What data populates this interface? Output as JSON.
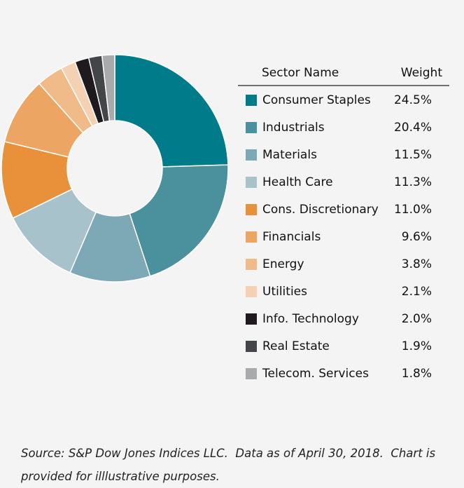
{
  "chart_data": {
    "type": "donut",
    "legend_header": [
      "Sector Name",
      "Weight"
    ],
    "categories": [
      "Consumer Staples",
      "Industrials",
      "Materials",
      "Health Care",
      "Cons. Discretionary",
      "Financials",
      "Energy",
      "Utilities",
      "Info. Technology",
      "Real Estate",
      "Telecom. Services"
    ],
    "values": [
      24.5,
      20.4,
      11.5,
      11.3,
      11.0,
      9.6,
      3.8,
      2.1,
      2.0,
      1.9,
      1.8
    ],
    "value_labels": [
      "24.5%",
      "20.4%",
      "11.5%",
      "11.3%",
      "11.0%",
      "9.6%",
      "3.8%",
      "2.1%",
      "2.0%",
      "1.9%",
      "1.8%"
    ],
    "colors": [
      "#007b8a",
      "#4a909d",
      "#7da8b5",
      "#a7c2cb",
      "#e8913a",
      "#eda564",
      "#f0bb89",
      "#f3d1b2",
      "#1e1a1d",
      "#444548",
      "#a9aaab"
    ],
    "source": "Source: S&P Dow Jones Indices LLC.  Data as of April 30, 2018.  Chart is provided for illlustrative purposes."
  }
}
